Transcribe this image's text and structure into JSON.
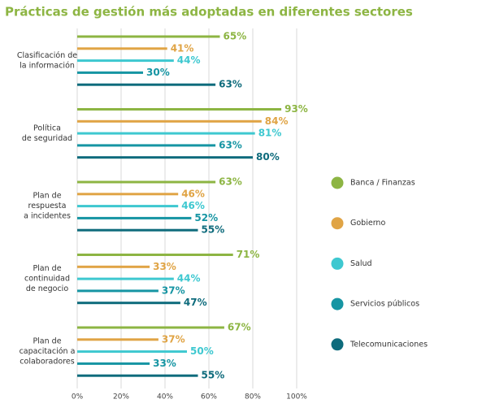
{
  "chart_data": {
    "type": "hbar-grouped",
    "title": "Prácticas de gestión más adoptadas en diferentes sectores",
    "categories": [
      [
        "Clasificación de",
        "la información"
      ],
      [
        "Política",
        "de seguridad"
      ],
      [
        "Plan de",
        "respuesta",
        "a incidentes"
      ],
      [
        "Plan de",
        "continuidad",
        "de negocio"
      ],
      [
        "Plan de",
        "capacitación a",
        "colaboradores"
      ]
    ],
    "series": [
      {
        "name": "Banca / Finanzas",
        "color": "#8db543",
        "values": [
          65,
          93,
          63,
          71,
          67
        ],
        "value_labels": [
          "65%",
          "93%",
          "63%",
          "71%",
          "67%"
        ]
      },
      {
        "name": "Gobierno",
        "color": "#e0a445",
        "values": [
          41,
          84,
          46,
          33,
          37
        ],
        "value_labels": [
          "41%",
          "84%",
          "46%",
          "33%",
          "37%"
        ]
      },
      {
        "name": "Salud",
        "color": "#3ec8d0",
        "values": [
          44,
          81,
          46,
          44,
          50
        ],
        "value_labels": [
          "44%",
          "81%",
          "46%",
          "44%",
          "50%"
        ]
      },
      {
        "name": "Servicios públicos",
        "color": "#1695a3",
        "values": [
          30,
          63,
          52,
          37,
          33
        ],
        "value_labels": [
          "30%",
          "63%",
          "52%",
          "37%",
          "33%"
        ]
      },
      {
        "name": "Telecomunicaciones",
        "color": "#0e6b7c",
        "values": [
          63,
          80,
          55,
          47,
          55
        ],
        "value_labels": [
          "63%",
          "80%",
          "55%",
          "47%",
          "55%"
        ]
      }
    ],
    "xlim": [
      0,
      100
    ],
    "xticks": [
      {
        "value": 0,
        "label": "0%"
      },
      {
        "value": 20,
        "label": "20%"
      },
      {
        "value": 40,
        "label": "40%"
      },
      {
        "value": 60,
        "label": "60%"
      },
      {
        "value": 80,
        "label": "80%"
      },
      {
        "value": 100,
        "label": "100%"
      }
    ],
    "grid": true,
    "legend": "right"
  }
}
